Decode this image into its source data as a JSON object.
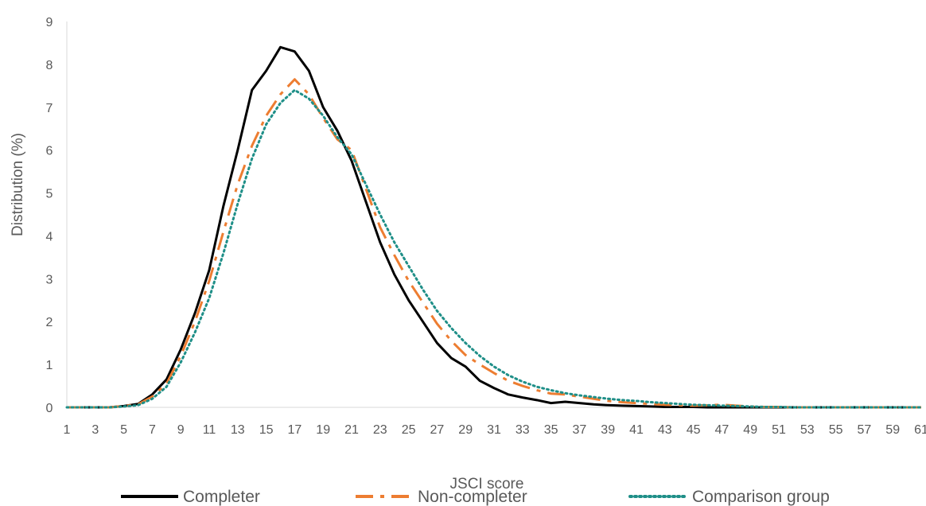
{
  "chart_data": {
    "type": "line",
    "title": "",
    "xlabel": "JSCI score",
    "ylabel": "Distribution (%)",
    "ylim": [
      0,
      9
    ],
    "yticks": [
      0,
      1,
      2,
      3,
      4,
      5,
      6,
      7,
      8,
      9
    ],
    "x": [
      1,
      2,
      3,
      4,
      5,
      6,
      7,
      8,
      9,
      10,
      11,
      12,
      13,
      14,
      15,
      16,
      17,
      18,
      19,
      20,
      21,
      22,
      23,
      24,
      25,
      26,
      27,
      28,
      29,
      30,
      31,
      32,
      33,
      34,
      35,
      36,
      37,
      38,
      39,
      40,
      41,
      42,
      43,
      44,
      45,
      46,
      47,
      48,
      49,
      50,
      51,
      52,
      53,
      54,
      55,
      56,
      57,
      58,
      59,
      60,
      61
    ],
    "xtick_labels": [
      "1",
      "3",
      "5",
      "7",
      "9",
      "11",
      "13",
      "15",
      "17",
      "19",
      "21",
      "23",
      "25",
      "27",
      "29",
      "31",
      "33",
      "35",
      "37",
      "39",
      "41",
      "43",
      "45",
      "47",
      "49",
      "51",
      "53",
      "55",
      "57",
      "59",
      "61"
    ],
    "grid": false,
    "legend_position": "bottom",
    "series": [
      {
        "name": "Completer",
        "color": "#000000",
        "style": "solid",
        "values": [
          0,
          0,
          0,
          0,
          0.03,
          0.08,
          0.3,
          0.65,
          1.35,
          2.2,
          3.2,
          4.7,
          6.0,
          7.4,
          7.85,
          8.4,
          8.3,
          7.85,
          7.0,
          6.45,
          5.75,
          4.8,
          3.85,
          3.1,
          2.5,
          2.0,
          1.5,
          1.15,
          0.95,
          0.62,
          0.45,
          0.3,
          0.23,
          0.17,
          0.1,
          0.13,
          0.1,
          0.07,
          0.05,
          0.04,
          0.03,
          0.02,
          0.01,
          0.01,
          0.01,
          0,
          0,
          0,
          0,
          0,
          0,
          0,
          0,
          0,
          0,
          0,
          0,
          0,
          0,
          0,
          0
        ]
      },
      {
        "name": "Non-completer",
        "color": "#ED7D31",
        "style": "dashdot",
        "values": [
          0,
          0,
          0,
          0,
          0.03,
          0.07,
          0.25,
          0.55,
          1.2,
          2.0,
          2.95,
          4.1,
          5.2,
          6.1,
          6.8,
          7.3,
          7.65,
          7.3,
          6.75,
          6.25,
          6.0,
          5.1,
          4.2,
          3.55,
          2.95,
          2.45,
          1.95,
          1.55,
          1.22,
          1.0,
          0.8,
          0.62,
          0.5,
          0.4,
          0.32,
          0.3,
          0.25,
          0.2,
          0.15,
          0.12,
          0.1,
          0.08,
          0.06,
          0.05,
          0.04,
          0.05,
          0.06,
          0.04,
          0.02,
          0.01,
          0.01,
          0,
          0,
          0,
          0,
          0,
          0,
          0,
          0,
          0,
          0
        ]
      },
      {
        "name": "Comparison group",
        "color": "#1F8F88",
        "style": "dotted",
        "values": [
          0,
          0,
          0,
          0,
          0.02,
          0.05,
          0.2,
          0.48,
          1.05,
          1.75,
          2.55,
          3.6,
          4.75,
          5.8,
          6.6,
          7.1,
          7.4,
          7.2,
          6.8,
          6.3,
          5.9,
          5.2,
          4.5,
          3.85,
          3.3,
          2.75,
          2.25,
          1.85,
          1.5,
          1.2,
          0.95,
          0.75,
          0.6,
          0.48,
          0.4,
          0.33,
          0.28,
          0.24,
          0.2,
          0.17,
          0.15,
          0.12,
          0.1,
          0.08,
          0.06,
          0.05,
          0.04,
          0.03,
          0.02,
          0.01,
          0.01,
          0,
          0,
          0,
          0,
          0,
          0,
          0,
          0,
          0,
          0
        ]
      }
    ]
  }
}
